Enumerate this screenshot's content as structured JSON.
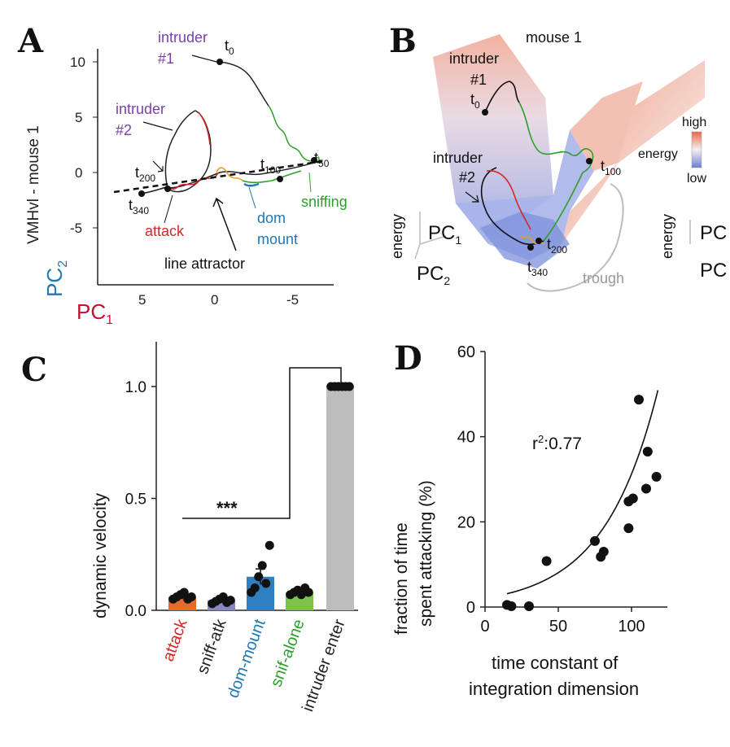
{
  "panels": {
    "A": {
      "letter": "A",
      "axis": {
        "x_ticks": [
          "5",
          "0",
          "-5"
        ],
        "y_ticks": [
          "10",
          "5",
          "0",
          "-5"
        ],
        "x_label_main": "PC",
        "x_label_sub": "1",
        "y_label_main": "PC",
        "y_label_sub": "2",
        "y_title": "VMHvl - mouse 1"
      },
      "annotations": {
        "intruder1_a": "intruder",
        "intruder1_b": "#1",
        "intruder2_a": "intruder",
        "intruder2_b": "#2",
        "t0": "t",
        "t0_sub": "0",
        "t50": "t",
        "t50_sub": "50",
        "t100": "t",
        "t100_sub": "100",
        "t200": "t",
        "t200_sub": "200",
        "t340": "t",
        "t340_sub": "340",
        "attack": "attack",
        "dom_mount_a": "dom",
        "dom_mount_b": "mount",
        "sniffing": "sniffing",
        "line_attractor": "line attractor"
      },
      "colors": {
        "attack": "#d62728",
        "dom_mount": "#1f77b4",
        "sniffing": "#2ca02c",
        "intruder": "#7b3fa8",
        "pc1": "#c8102e",
        "pc2": "#1f77b4"
      }
    },
    "B": {
      "letter": "B",
      "labels": {
        "mouse": "mouse 1",
        "intruder1_a": "intruder",
        "intruder1_b": "#1",
        "intruder2_a": "intruder",
        "intruder2_b": "#2",
        "t0": "t",
        "t0_sub": "0",
        "t100": "t",
        "t100_sub": "100",
        "t200": "t",
        "t200_sub": "200",
        "t340": "t",
        "t340_sub": "340",
        "trough": "trough",
        "energy": "energy",
        "energy_right": "energy",
        "pc1_main": "PC",
        "pc1_sub": "1",
        "pc2_main": "PC",
        "pc2_sub": "2",
        "pc_cut1": "PC",
        "pc_cut2": "PC"
      },
      "colorbar": {
        "high": "high",
        "label": "energy",
        "low": "low",
        "high_color": "#e8684a",
        "low_color": "#6a7fd0"
      }
    },
    "C": {
      "letter": "C",
      "ylabel": "dynamic velocity",
      "significance": "***",
      "y_ticks": [
        "0.0",
        "0.5",
        "1.0"
      ],
      "category_colors": [
        "#d62728",
        "#222222",
        "#1f77b4",
        "#2ca02c",
        "#222222"
      ],
      "bar_colors": [
        "#e8692a",
        "#8a86c0",
        "#2f7fc1",
        "#7dc24b",
        "#bdbdbd"
      ]
    },
    "D": {
      "letter": "D",
      "xlabel_a": "time constant of",
      "xlabel_b": "integration dimension",
      "ylabel_a": "fraction of time",
      "ylabel_b": "spent attacking (%)",
      "x_ticks": [
        "0",
        "50",
        "100"
      ],
      "y_ticks": [
        "0",
        "20",
        "40",
        "60"
      ],
      "r2_main": "r",
      "r2_sup": "2",
      "r2_value": ":0.77"
    }
  },
  "chart_data": [
    {
      "panel": "C",
      "type": "bar",
      "categories": [
        "attack",
        "sniff-atk",
        "dom-mount",
        "snif-alone",
        "intruder enter"
      ],
      "values": [
        0.06,
        0.045,
        0.15,
        0.08,
        1.0
      ],
      "errors": [
        0.01,
        0.01,
        0.035,
        0.01,
        0.0
      ],
      "points": [
        [
          0.05,
          0.06,
          0.07,
          0.08,
          0.05,
          0.06
        ],
        [
          0.03,
          0.04,
          0.05,
          0.06,
          0.035,
          0.045
        ],
        [
          0.08,
          0.1,
          0.15,
          0.2,
          0.12,
          0.29
        ],
        [
          0.07,
          0.08,
          0.09,
          0.07,
          0.1,
          0.08
        ],
        [
          1.0,
          1.0,
          1.0,
          1.0,
          1.0,
          1.0
        ]
      ],
      "ylim": [
        0,
        1.2
      ],
      "ylabel": "dynamic velocity"
    },
    {
      "panel": "D",
      "type": "scatter",
      "xlim": [
        0,
        120
      ],
      "ylim": [
        0,
        60
      ],
      "xlabel": "time constant of integration dimension",
      "ylabel": "fraction of time spent attacking (%)",
      "points": [
        [
          15,
          0.5
        ],
        [
          18,
          0.2
        ],
        [
          30,
          0.2
        ],
        [
          42,
          10.8
        ],
        [
          75,
          15.5
        ],
        [
          79,
          11.8
        ],
        [
          81,
          13.0
        ],
        [
          98,
          18.5
        ],
        [
          98,
          24.8
        ],
        [
          101,
          25.5
        ],
        [
          105,
          48.7
        ],
        [
          110,
          27.8
        ],
        [
          111,
          36.5
        ],
        [
          117,
          30.6
        ]
      ],
      "fit": {
        "type": "exponential",
        "a": 2.08,
        "b": 0.0271
      },
      "annotation": "r2:0.77"
    }
  ]
}
